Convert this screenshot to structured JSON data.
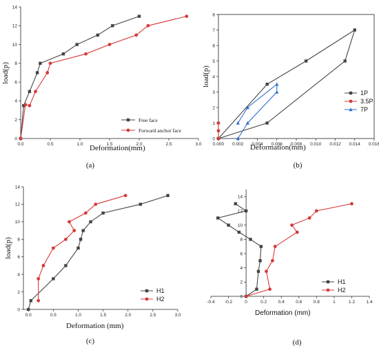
{
  "chart_data": [
    {
      "panel_label": "(a)",
      "type": "line",
      "xlabel": "Deformation(mm)",
      "ylabel": "load(p)",
      "xlim": [
        0,
        3.0
      ],
      "ylim": [
        0,
        14
      ],
      "xticks": [
        "0.0",
        "0.5",
        "1.0",
        "1.5",
        "2.0",
        "2.5",
        "3.0"
      ],
      "yticks": [
        "0",
        "2",
        "4",
        "6",
        "8",
        "10",
        "12",
        "14"
      ],
      "legend_position": "center-right",
      "series": [
        {
          "name": "Free face",
          "color": "#444444",
          "marker": "square",
          "x": [
            0,
            0.05,
            0.15,
            0.28,
            0.33,
            0.72,
            0.95,
            1.3,
            1.55,
            2.0
          ],
          "y": [
            0,
            3.5,
            5,
            7,
            8,
            9,
            10,
            11,
            12,
            13
          ]
        },
        {
          "name": "Forward anchor face",
          "color": "#d63a3a",
          "marker": "circle",
          "x": [
            0,
            0.08,
            0.15,
            0.25,
            0.45,
            0.5,
            1.1,
            1.5,
            1.95,
            2.15,
            2.8
          ],
          "y": [
            0,
            3.6,
            3.5,
            5,
            7,
            8,
            9,
            10,
            11,
            12,
            13
          ]
        }
      ]
    },
    {
      "panel_label": "(b)",
      "type": "line",
      "xlabel": "Deformation(mm)",
      "ylabel": "load(p)",
      "xlim": [
        0,
        0.016
      ],
      "ylim": [
        0,
        8
      ],
      "xticks": [
        "0.000",
        "0.002",
        "0.004",
        "0.006",
        "0.008",
        "0.010",
        "0.012",
        "0.014",
        "0.016"
      ],
      "yticks": [
        "0",
        "1",
        "2",
        "3",
        "4",
        "5",
        "6",
        "7",
        "8"
      ],
      "legend_position": "right",
      "series": [
        {
          "name": "1P",
          "color": "#444444",
          "marker": "square",
          "x": [
            0,
            0.005,
            0.009,
            0.014,
            0.013,
            0.005,
            0
          ],
          "y": [
            0,
            3.5,
            5,
            7,
            5,
            1,
            0
          ]
        },
        {
          "name": "3.5P",
          "color": "#d63a3a",
          "marker": "circle",
          "x": [
            0,
            0,
            0,
            0
          ],
          "y": [
            0,
            0.5,
            1,
            0
          ]
        },
        {
          "name": "7P",
          "color": "#2f6fd0",
          "marker": "triangle",
          "x": [
            0.002,
            0.003,
            0.006,
            0.006,
            0.003,
            0.002
          ],
          "y": [
            0,
            1,
            3,
            3.5,
            2,
            1
          ]
        }
      ]
    },
    {
      "panel_label": "(c)",
      "type": "line",
      "xlabel": "Deformation (mm)",
      "ylabel": "load(p)",
      "xlim": [
        -0.1,
        3.0
      ],
      "ylim": [
        0,
        14
      ],
      "xticks": [
        "0.0",
        "0.5",
        "1.0",
        "1.5",
        "2.0",
        "2.5",
        "3.0"
      ],
      "yticks": [
        "0",
        "2",
        "4",
        "6",
        "8",
        "10",
        "12",
        "14"
      ],
      "legend_position": "bottom-right",
      "series": [
        {
          "name": "H1",
          "color": "#444444",
          "marker": "square",
          "x": [
            0,
            0.05,
            0.5,
            0.75,
            1.0,
            1.05,
            1.1,
            1.25,
            1.5,
            2.25,
            2.8
          ],
          "y": [
            0,
            1,
            3.5,
            5,
            7,
            8,
            9,
            10,
            11,
            12,
            13
          ]
        },
        {
          "name": "H2",
          "color": "#d63a3a",
          "marker": "circle",
          "x": [
            0.2,
            0.2,
            0.3,
            0.5,
            0.75,
            0.92,
            0.82,
            1.15,
            1.35,
            1.95
          ],
          "y": [
            1,
            3.5,
            5,
            7,
            8,
            9,
            10,
            11,
            12,
            13
          ]
        }
      ]
    },
    {
      "panel_label": "(d)",
      "type": "line",
      "xlabel": "Deformation (mm)",
      "ylabel": "load(p)",
      "xlim": [
        -0.4,
        1.4
      ],
      "ylim": [
        0,
        15
      ],
      "xticks": [
        "-0.4",
        "-0.2",
        "0",
        "0.2",
        "0.4",
        "0.6",
        "0.8",
        "1",
        "1.2",
        "1.4"
      ],
      "yticks": [
        "0",
        "2",
        "4",
        "6",
        "8",
        "10",
        "12",
        "14"
      ],
      "legend_position": "bottom-left",
      "series": [
        {
          "name": "H1",
          "color": "#444444",
          "marker": "square",
          "x": [
            0,
            0.12,
            0.14,
            0.16,
            0.17,
            0.05,
            -0.08,
            -0.2,
            -0.32,
            0,
            -0.12
          ],
          "y": [
            0,
            1,
            3.5,
            5,
            7,
            8,
            9,
            10,
            11,
            12,
            13
          ]
        },
        {
          "name": "H2",
          "color": "#d63a3a",
          "marker": "circle",
          "x": [
            0,
            0.27,
            0.23,
            0.3,
            0.33,
            0.58,
            0.52,
            0.72,
            0.8,
            1.2
          ],
          "y": [
            0,
            1,
            3.5,
            5,
            7,
            9,
            10,
            11,
            12,
            13
          ]
        }
      ]
    }
  ]
}
